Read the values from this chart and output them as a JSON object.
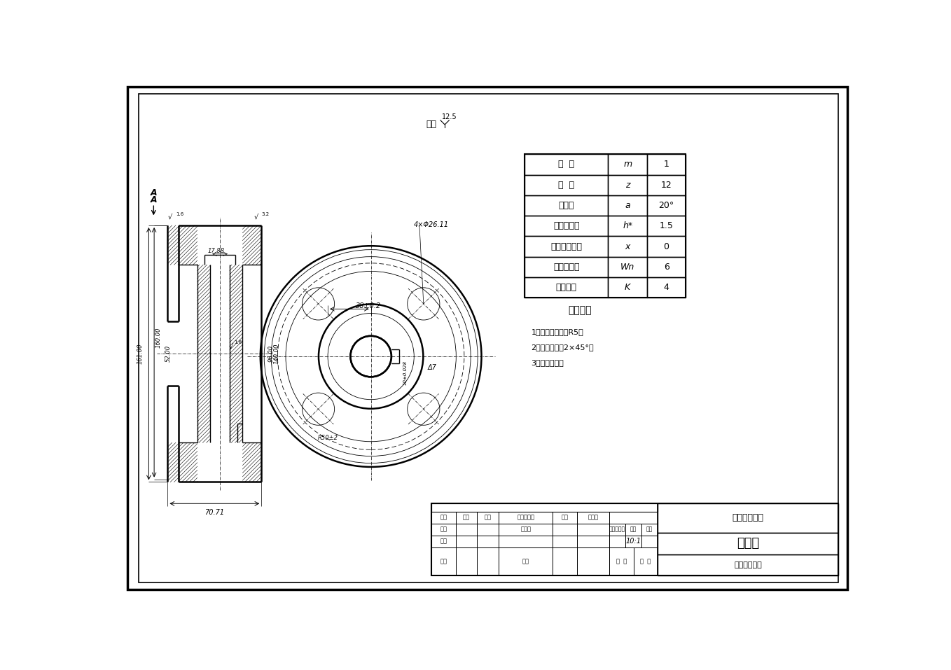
{
  "bg_color": "#ffffff",
  "line_color": "#000000",
  "gear_table_rows": [
    [
      "模  数",
      "m",
      "1"
    ],
    [
      "齿  数",
      "z",
      "12"
    ],
    [
      "压力角",
      "a",
      "20°"
    ],
    [
      "齿顶高系数",
      "h*",
      "1.5"
    ],
    [
      "径向变位系数",
      "x",
      "0"
    ],
    [
      "公法线长度",
      "Wn",
      "6"
    ],
    [
      "跨测齿数",
      "K",
      "4"
    ]
  ],
  "tech_req_title": "技术要求",
  "tech_req_items": [
    "1，未注圆角半径R5。",
    "2，未注倒角为2×45°。",
    "3，清除毛刺。"
  ],
  "title_block": {
    "material": "（材料名称）",
    "part_name": "小齿轮",
    "drawing_number": "（图纸编号）",
    "scale": "10:1"
  }
}
